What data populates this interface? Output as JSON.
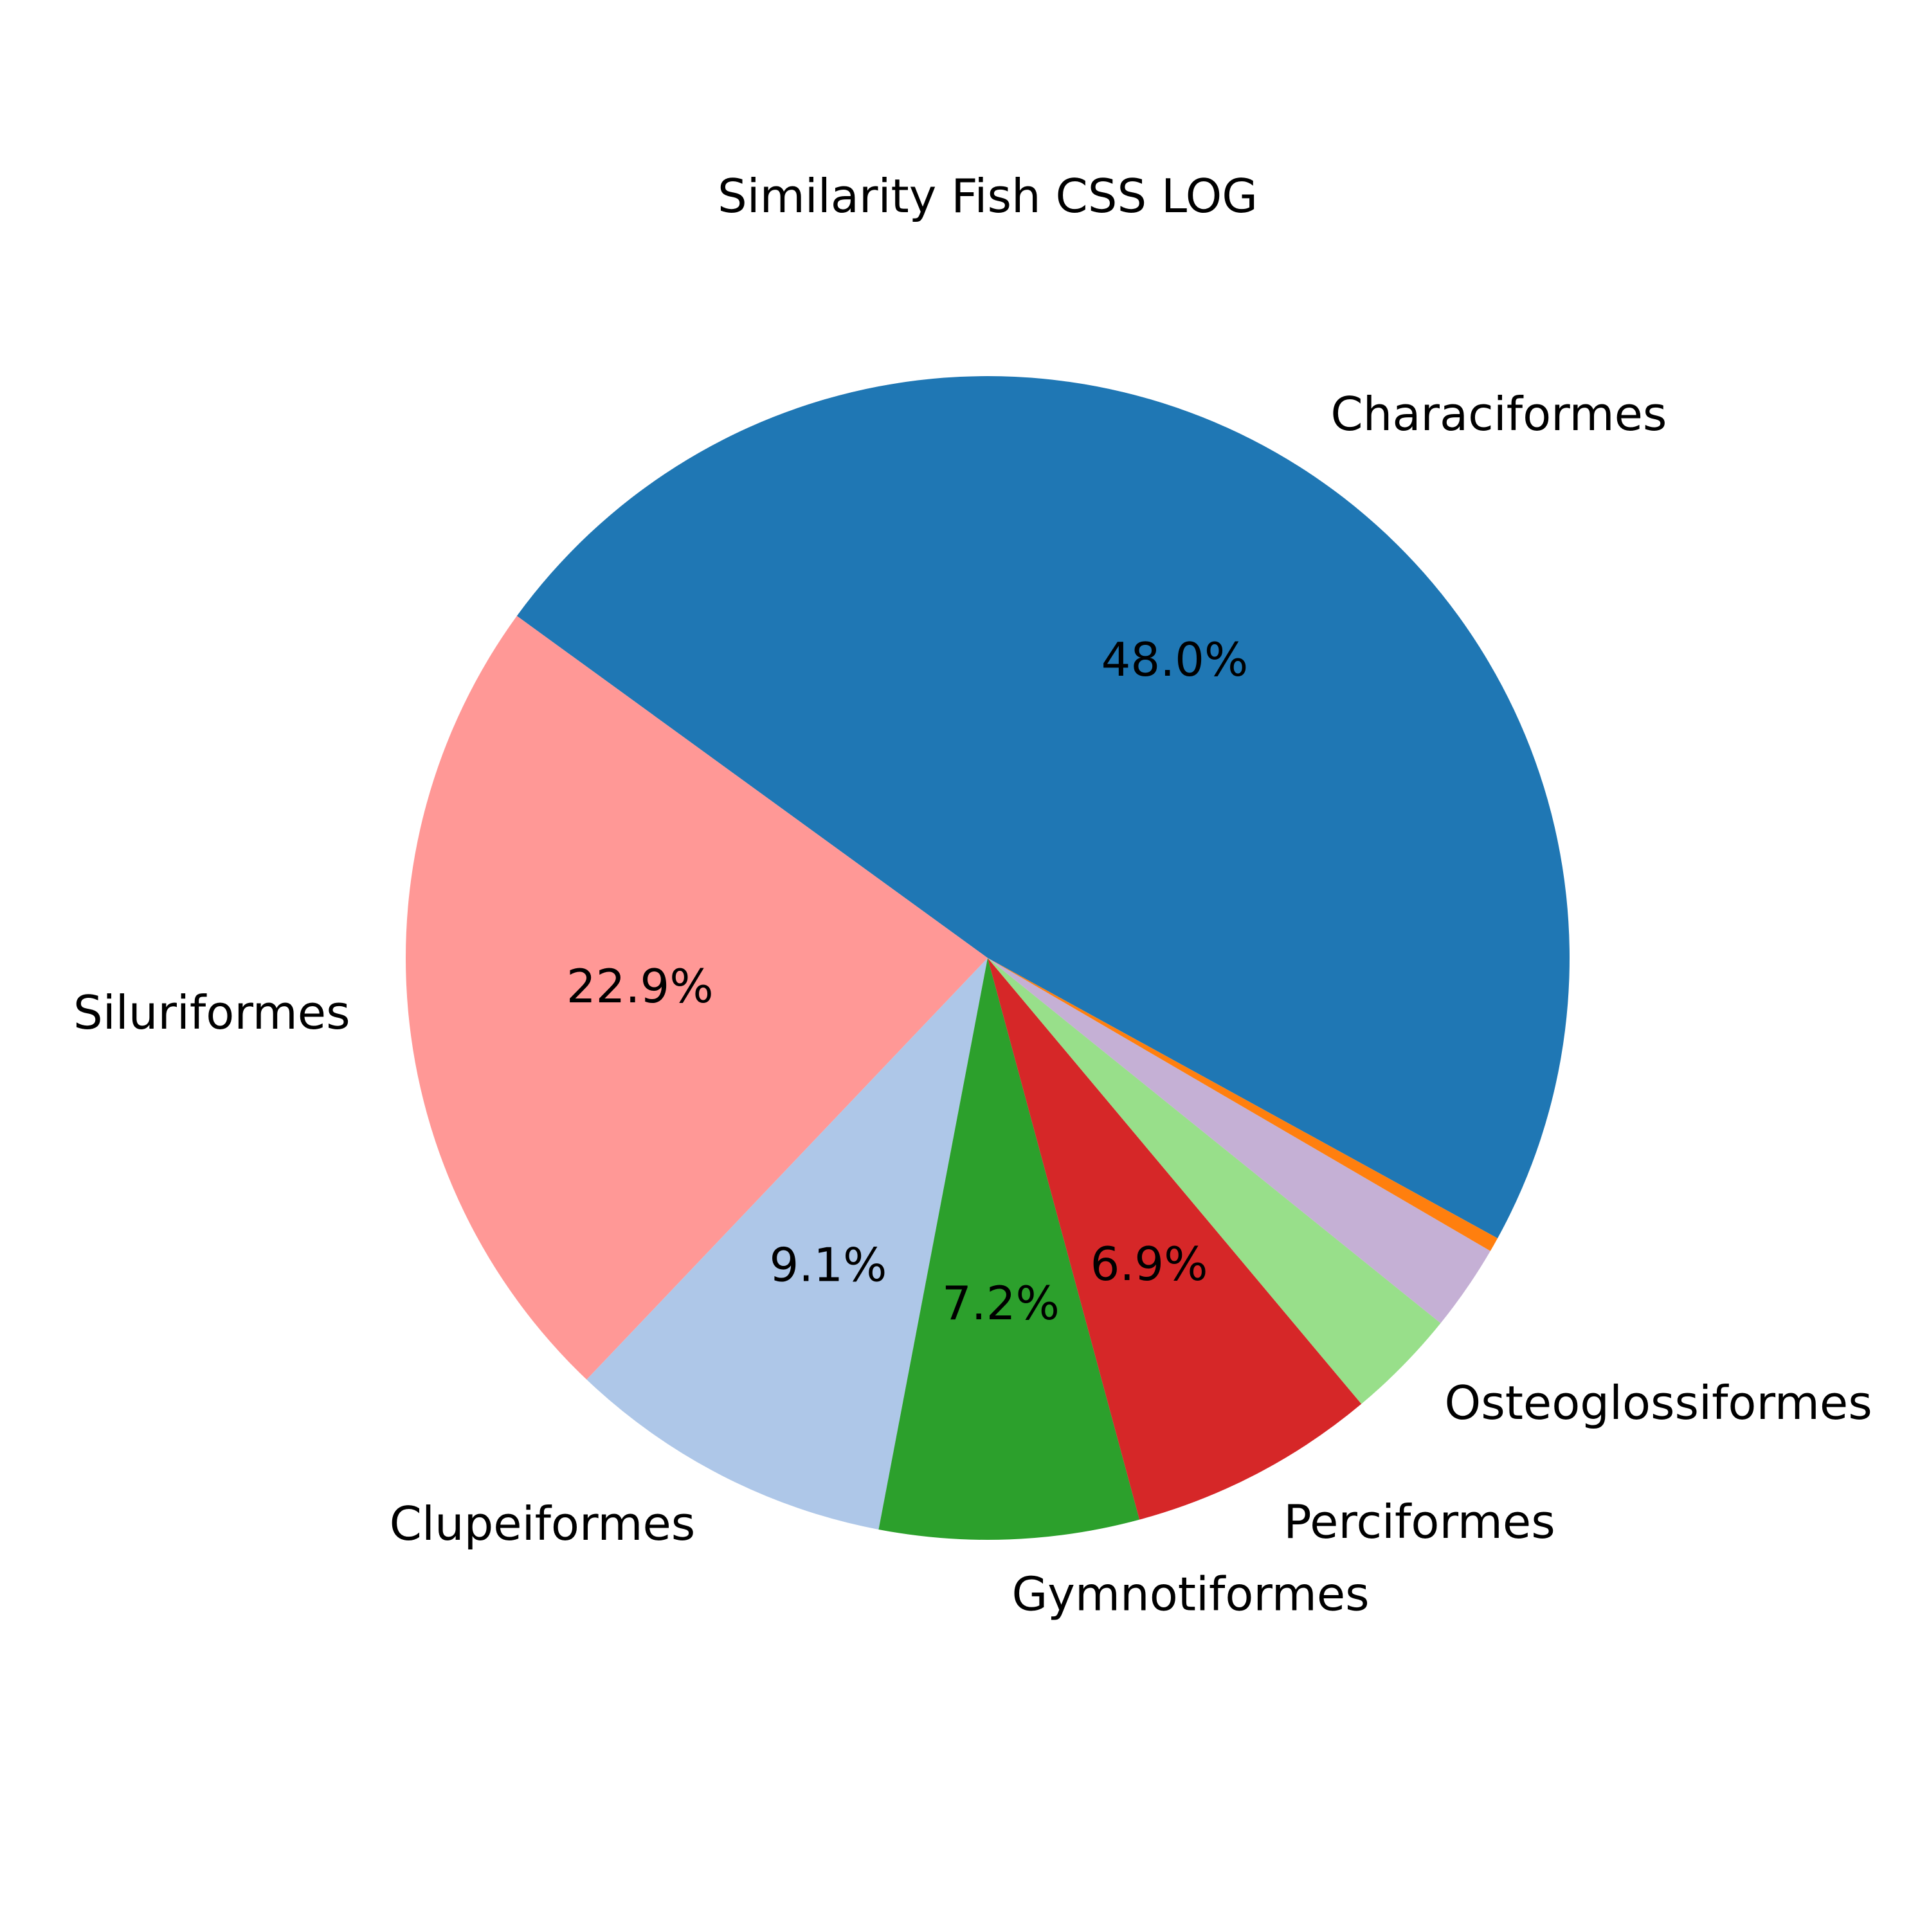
{
  "chart_data": {
    "type": "pie",
    "title": "Similarity Fish CSS LOG",
    "start_angle_deg": -28.8,
    "direction": "counterclockwise",
    "slices": [
      {
        "label": "Characiformes",
        "value": 48.0,
        "pct_label": "48.0%",
        "color": "#1f77b4"
      },
      {
        "label": "Siluriformes",
        "value": 22.9,
        "pct_label": "22.9%",
        "color": "#ff9896"
      },
      {
        "label": "Clupeiformes",
        "value": 9.1,
        "pct_label": "9.1%",
        "color": "#aec7e8"
      },
      {
        "label": "Gymnotiformes",
        "value": 7.2,
        "pct_label": "7.2%",
        "color": "#2ca02c"
      },
      {
        "label": "Perciformes",
        "value": 6.9,
        "pct_label": "6.9%",
        "color": "#d62728"
      },
      {
        "label": "Osteoglossiformes",
        "value": 3.1,
        "pct_label": "",
        "color": "#98df8a"
      },
      {
        "label": "",
        "value": 2.4,
        "pct_label": "",
        "color": "#c5b0d5"
      },
      {
        "label": "",
        "value": 0.4,
        "pct_label": "",
        "color": "#ff7f0e"
      }
    ]
  }
}
